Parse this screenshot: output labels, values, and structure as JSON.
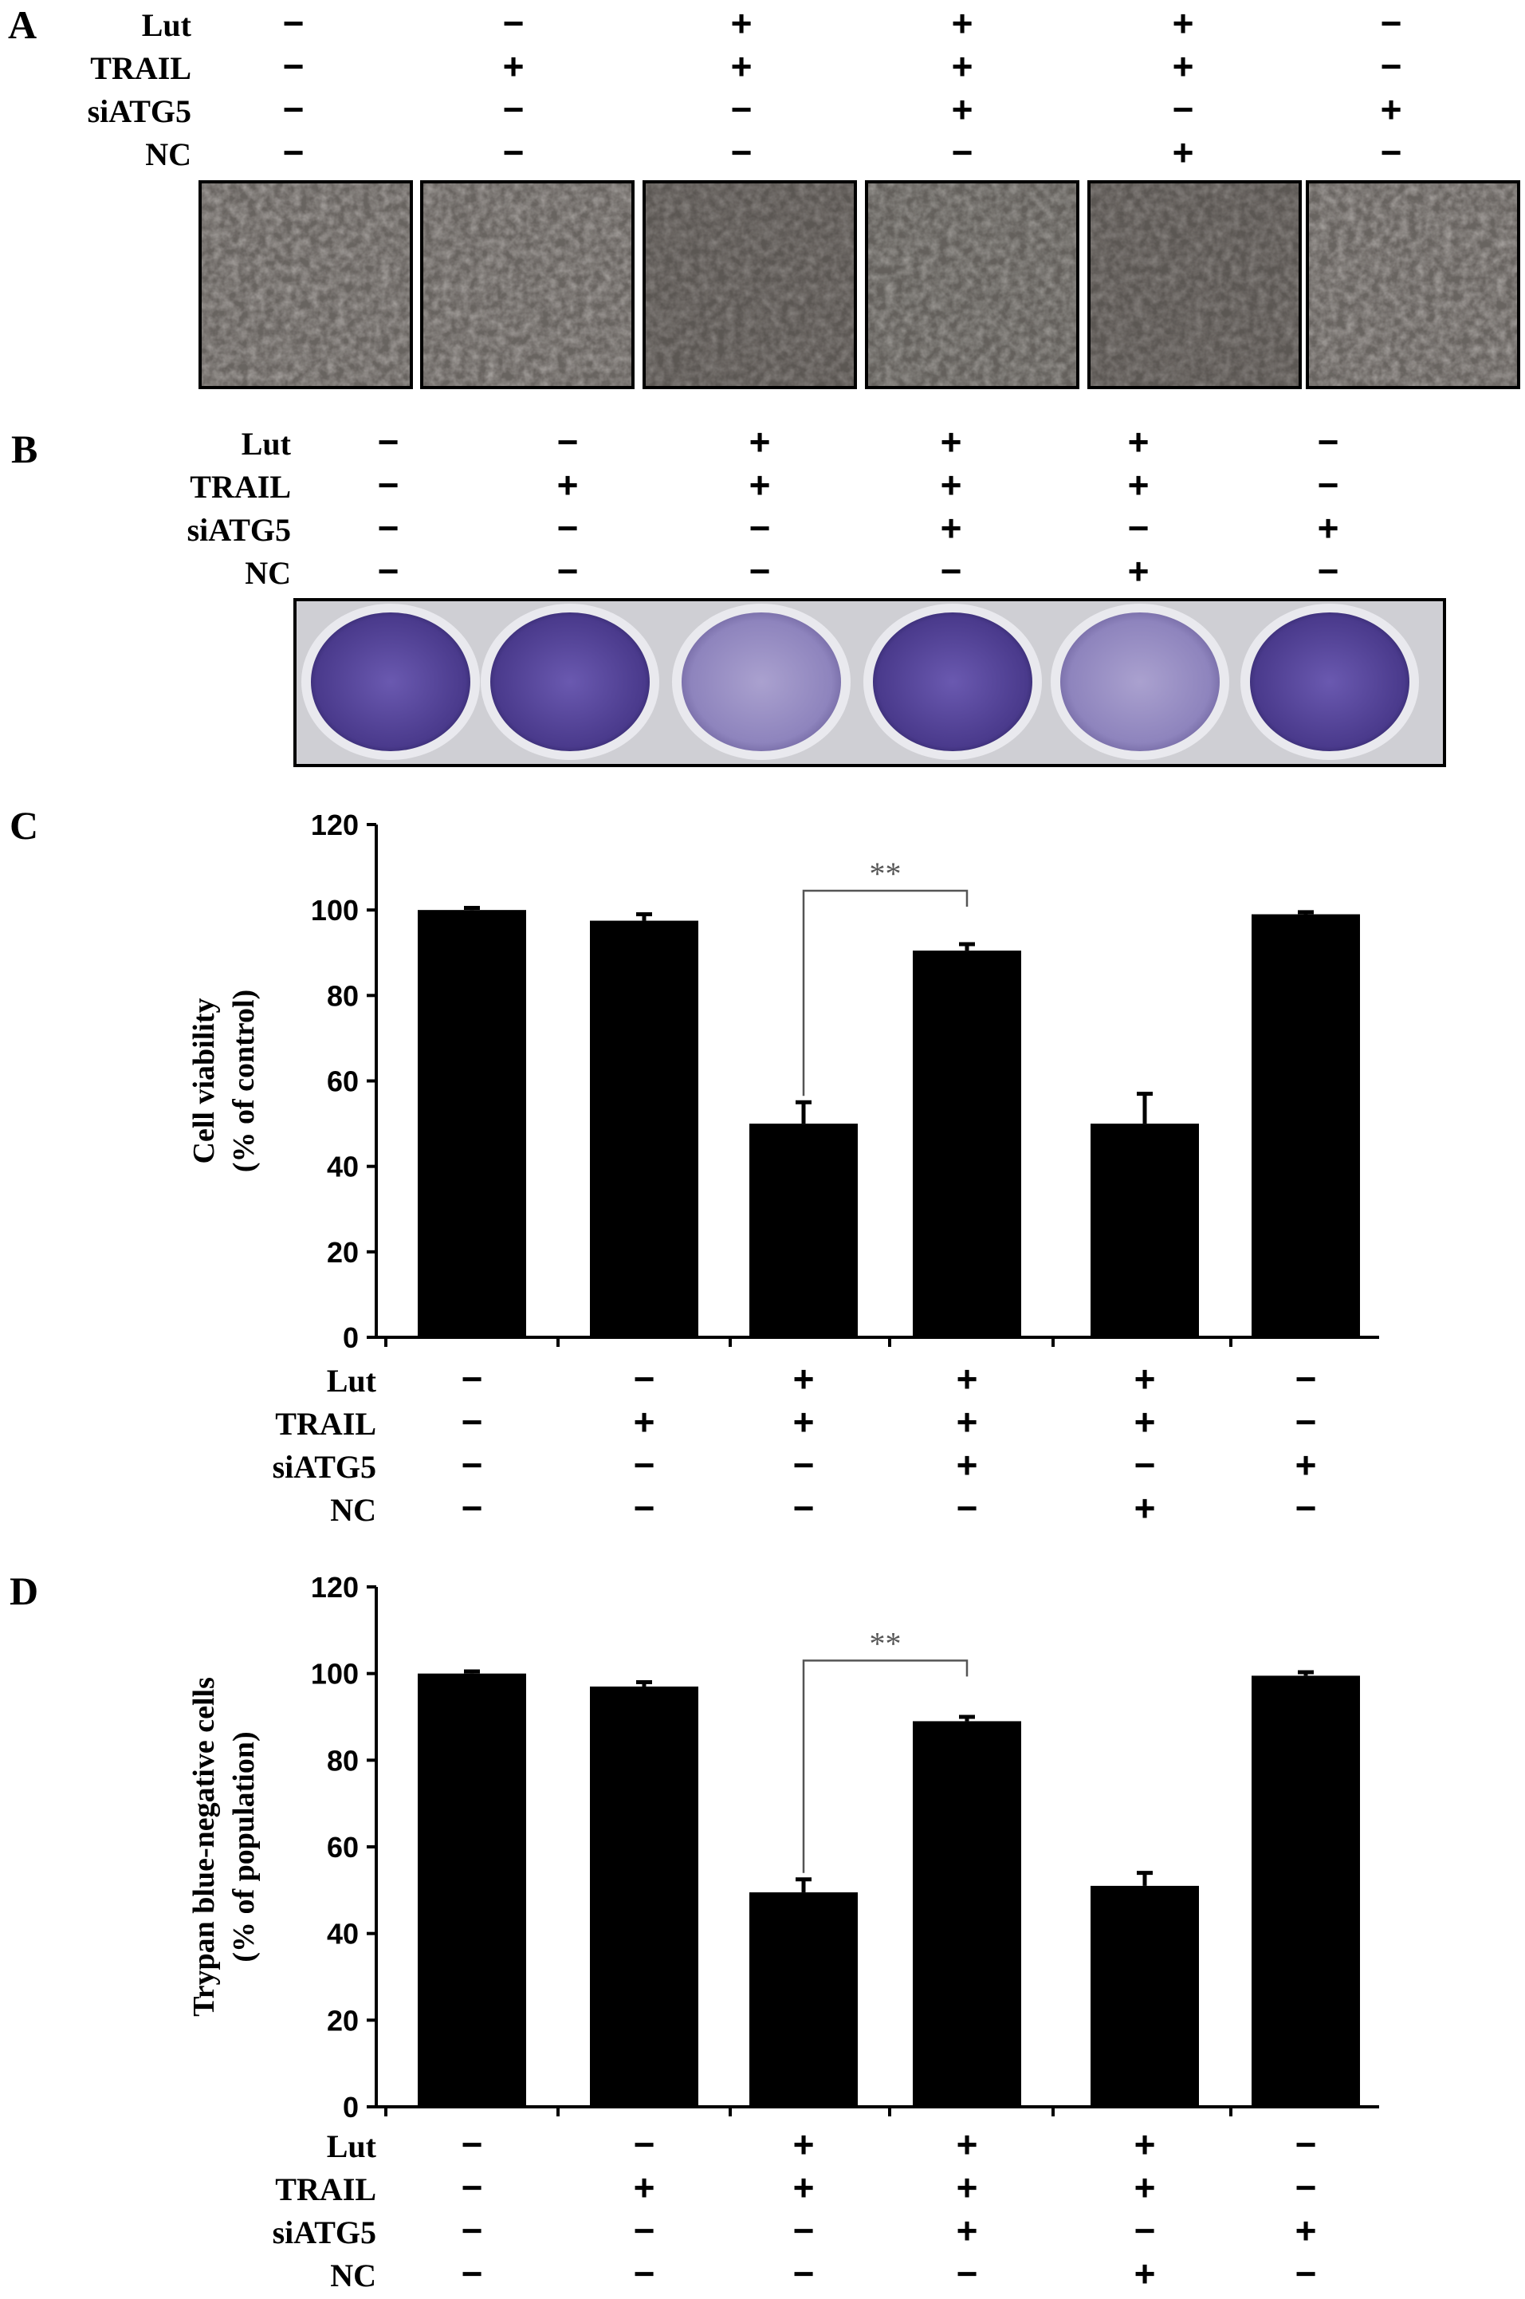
{
  "panels": {
    "a": {
      "letter": "A"
    },
    "b": {
      "letter": "B"
    },
    "c": {
      "letter": "C"
    },
    "d": {
      "letter": "D"
    }
  },
  "conditions": {
    "rows": [
      "Lut",
      "TRAIL",
      "siATG5",
      "NC"
    ],
    "groups": [
      [
        "−",
        "−",
        "−",
        "−"
      ],
      [
        "−",
        "+",
        "−",
        "−"
      ],
      [
        "+",
        "+",
        "−",
        "−"
      ],
      [
        "+",
        "+",
        "+",
        "−"
      ],
      [
        "+",
        "+",
        "−",
        "+"
      ],
      [
        "−",
        "−",
        "+",
        "−"
      ]
    ]
  },
  "colors": {
    "bar": "#000000",
    "bracket": "#555555",
    "micrograph": "#6e6a66",
    "well_violet": "#5d4aa0",
    "plate": "#cfcfd4"
  },
  "wells_b": {
    "stain_levels": [
      0.95,
      0.9,
      0.35,
      0.92,
      0.4,
      0.95
    ]
  },
  "chart_data": [
    {
      "type": "bar",
      "panel": "C",
      "ylabel_line1": "Cell viability",
      "ylabel_line2": "(% of control)",
      "ylim": [
        0,
        120
      ],
      "yticks": [
        0,
        20,
        40,
        60,
        80,
        100,
        120
      ],
      "values": [
        100,
        97.5,
        50,
        90.5,
        50,
        99
      ],
      "errors": [
        0.5,
        1.5,
        5,
        1.5,
        7,
        0.5
      ],
      "significance": {
        "from": 2,
        "to": 3,
        "label": "**"
      }
    },
    {
      "type": "bar",
      "panel": "D",
      "ylabel_line1": "Trypan blue-negative cells",
      "ylabel_line2": "(% of population)",
      "ylim": [
        0,
        120
      ],
      "yticks": [
        0,
        20,
        40,
        60,
        80,
        100,
        120
      ],
      "values": [
        100,
        97,
        49.5,
        89,
        51,
        99.5
      ],
      "errors": [
        0.5,
        1,
        3,
        1,
        3,
        0.8
      ],
      "significance": {
        "from": 2,
        "to": 3,
        "label": "**"
      }
    }
  ]
}
